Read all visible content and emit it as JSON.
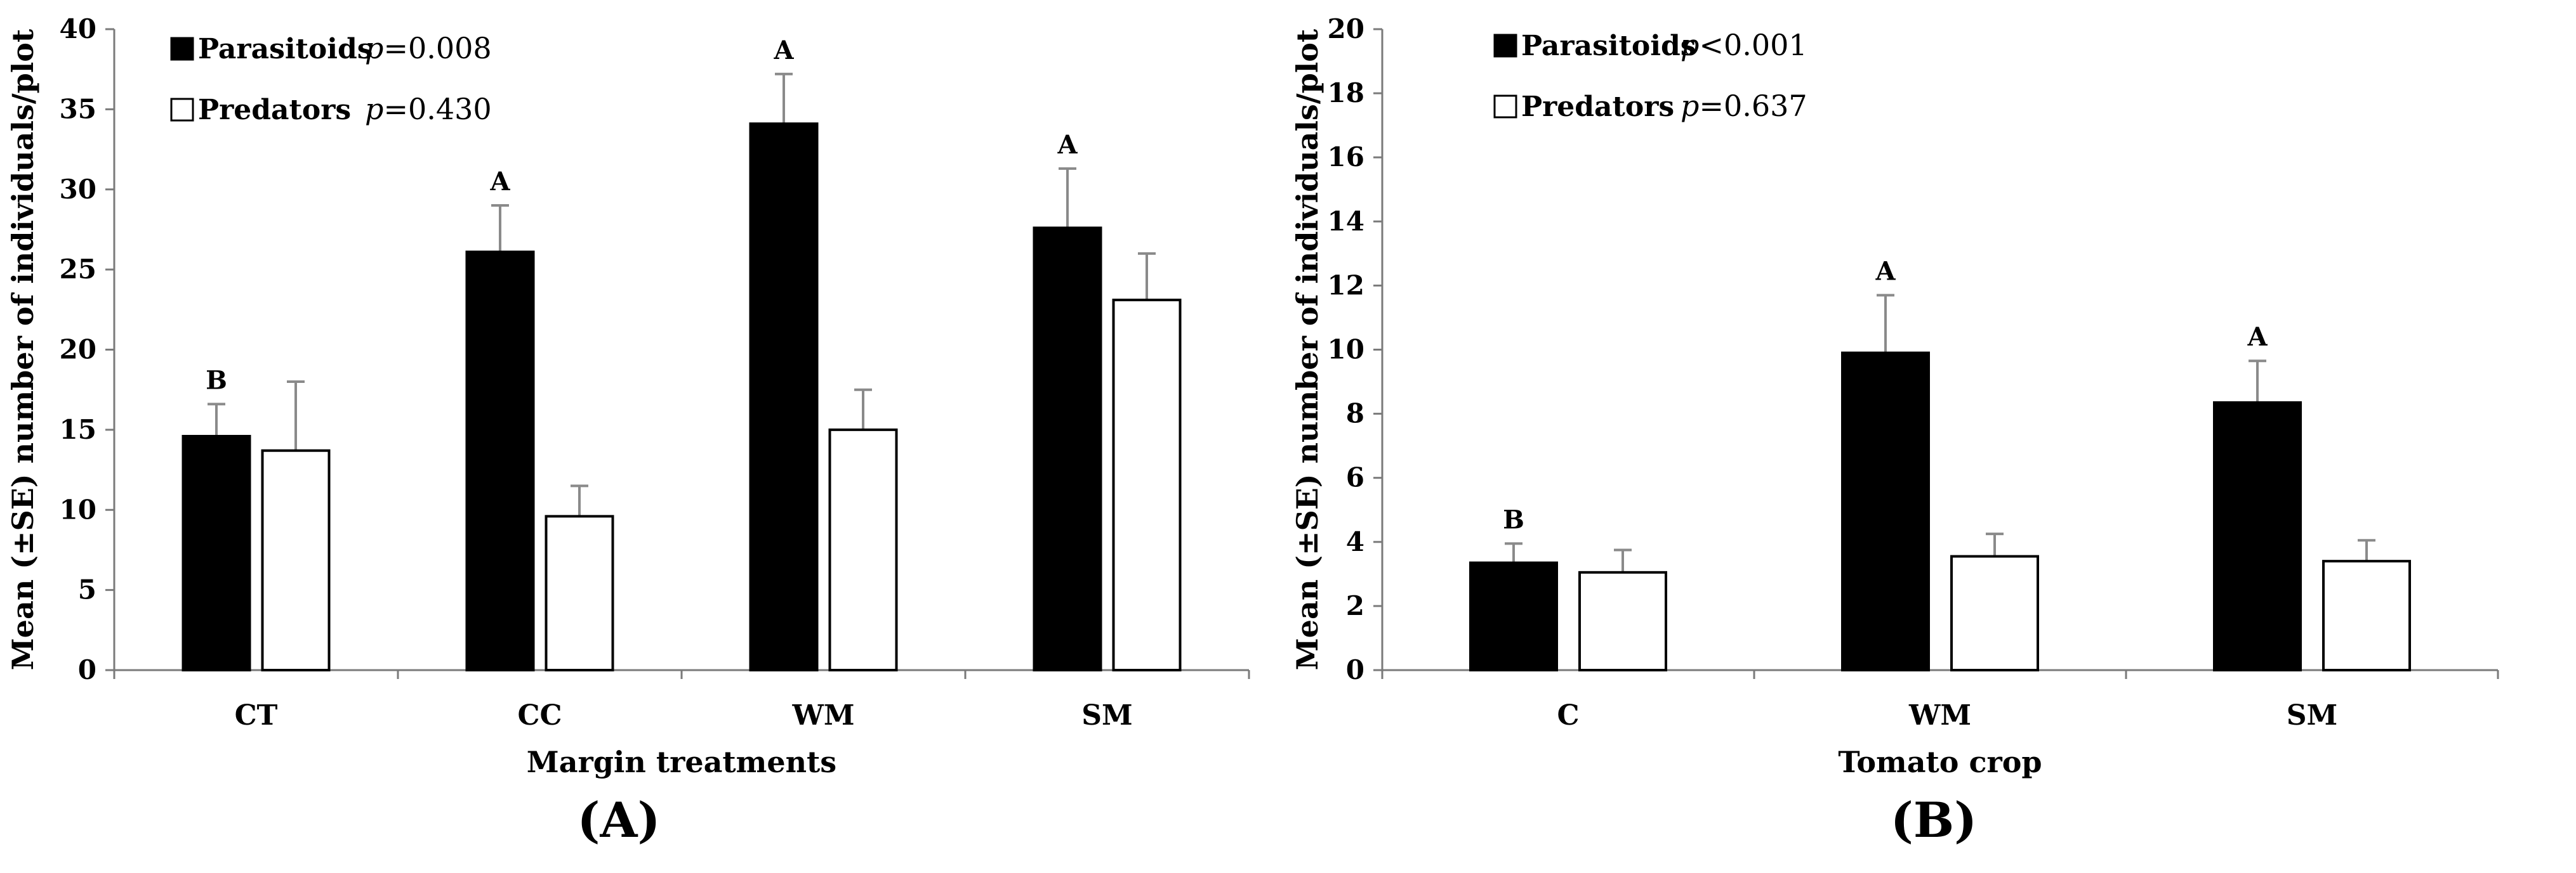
{
  "chart_data": [
    {
      "type": "bar",
      "panel_label": "(A)",
      "xlabel": "Margin treatments",
      "ylabel": "Mean (±SE) number of individuals/plot",
      "ylim": [
        0,
        40
      ],
      "yticks": [
        0,
        5,
        10,
        15,
        20,
        25,
        30,
        35,
        40
      ],
      "categories": [
        "CT",
        "CC",
        "WM",
        "SM"
      ],
      "series": [
        {
          "name": "Parasitoids",
          "color": "#000000",
          "values": [
            14.6,
            26.1,
            34.1,
            27.6
          ],
          "errors": [
            2.0,
            2.9,
            3.1,
            3.7
          ],
          "letters": [
            "B",
            "A",
            "A",
            "A"
          ],
          "p_prefix": "p",
          "p_value": "=0.008"
        },
        {
          "name": "Predators",
          "color": "#ffffff",
          "values": [
            13.7,
            9.6,
            15.0,
            23.1
          ],
          "errors": [
            4.3,
            1.9,
            2.5,
            2.9
          ],
          "letters": [
            "",
            "",
            "",
            ""
          ],
          "p_prefix": "p",
          "p_value": "=0.430"
        }
      ]
    },
    {
      "type": "bar",
      "panel_label": "(B)",
      "xlabel": "Tomato crop",
      "ylabel": "Mean (±SE) number of individuals/plot",
      "ylim": [
        0,
        20
      ],
      "yticks": [
        0,
        2,
        4,
        6,
        8,
        10,
        12,
        14,
        16,
        18,
        20
      ],
      "categories": [
        "C",
        "WM",
        "SM"
      ],
      "series": [
        {
          "name": "Parasitoids",
          "color": "#000000",
          "values": [
            3.35,
            9.9,
            8.35
          ],
          "errors": [
            0.6,
            1.8,
            1.3
          ],
          "letters": [
            "B",
            "A",
            "A"
          ],
          "p_prefix": "p",
          "p_value": "<0.001"
        },
        {
          "name": "Predators",
          "color": "#ffffff",
          "values": [
            3.05,
            3.55,
            3.4
          ],
          "errors": [
            0.7,
            0.7,
            0.65
          ],
          "letters": [
            "",
            "",
            ""
          ],
          "p_prefix": "p",
          "p_value": "=0.637"
        }
      ]
    }
  ]
}
